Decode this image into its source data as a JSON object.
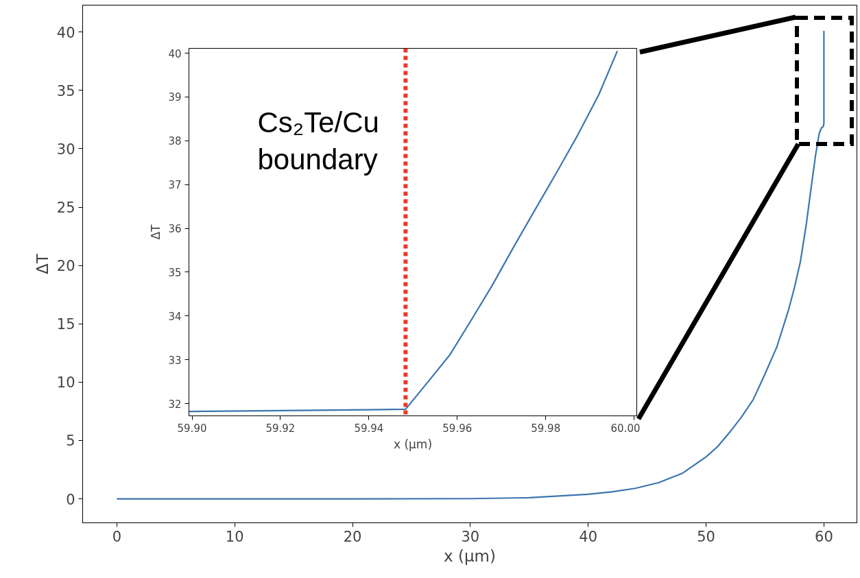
{
  "chart_data": [
    {
      "type": "line",
      "xlabel": "x (μm)",
      "ylabel": "ΔT",
      "color": "#3b75af",
      "x": [
        0,
        10,
        20,
        30,
        35,
        40,
        42,
        44,
        46,
        48,
        50,
        51,
        52,
        53,
        54,
        55,
        56,
        57,
        57.5,
        58,
        58.5,
        59,
        59.3,
        59.6,
        59.8,
        59.95,
        60,
        60
      ],
      "values": [
        0,
        0,
        0,
        0.02,
        0.1,
        0.4,
        0.6,
        0.9,
        1.4,
        2.2,
        3.6,
        4.5,
        5.7,
        7.0,
        8.5,
        10.7,
        13.0,
        16.2,
        18.1,
        20.3,
        23.5,
        27.3,
        29.5,
        31.3,
        31.8,
        31.9,
        32.2,
        40.1
      ],
      "xlim": [
        -2.9,
        62.8
      ],
      "ylim": [
        -2.05,
        42.3
      ],
      "xticks": [
        0,
        10,
        20,
        30,
        40,
        50,
        60
      ],
      "yticks": [
        0,
        5,
        10,
        15,
        20,
        25,
        30,
        35,
        40
      ],
      "grid": false
    },
    {
      "type": "line",
      "xlabel": "x (μm)",
      "ylabel": "ΔT",
      "color": "#3b75af",
      "x": [
        59.8993,
        59.92,
        59.94,
        59.9483,
        59.953,
        59.9583,
        59.963,
        59.9678,
        59.9725,
        59.9775,
        59.9825,
        59.9873,
        59.992,
        59.9962
      ],
      "values": [
        31.82,
        31.84,
        31.86,
        31.87,
        32.45,
        33.11,
        33.88,
        34.68,
        35.53,
        36.41,
        37.28,
        38.14,
        39.05,
        40.05
      ],
      "xlim": [
        59.8993,
        60.0006
      ],
      "ylim": [
        31.72,
        40.11
      ],
      "xticks": [
        {
          "value": 59.9,
          "label": "59.90"
        },
        59.92,
        59.94,
        59.96,
        59.98,
        {
          "value": 60.0,
          "label": "60.00"
        }
      ],
      "yticks": [
        32,
        33,
        34,
        35,
        36,
        37,
        38,
        39,
        40
      ],
      "grid": false,
      "ref_lines": [
        {
          "axis": "x",
          "value": 59.9483,
          "color": "#e8392a",
          "line_style": "dotted"
        }
      ],
      "annotations": [
        "Cs₂Te/Cu boundary"
      ]
    }
  ]
}
